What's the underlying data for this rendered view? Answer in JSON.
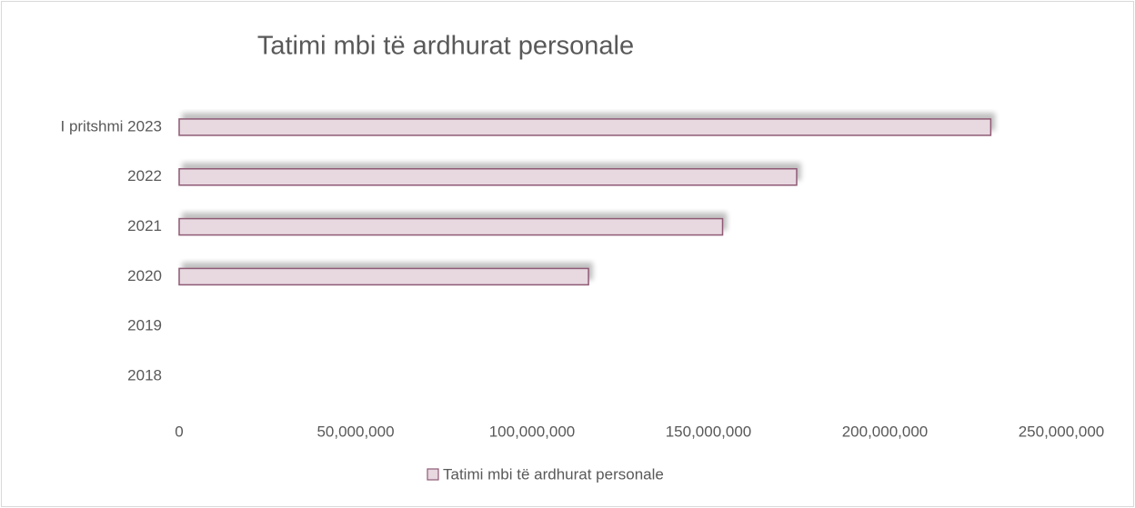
{
  "chart_data": {
    "type": "hbar",
    "title": "Tatimi mbi të ardhurat personale",
    "categories": [
      "2018",
      "2019",
      "2020",
      "2021",
      "2022",
      "I pritshmi 2023"
    ],
    "series": [
      {
        "name": "Tatimi mbi të ardhurat personale",
        "color": "#e8d8e0",
        "edge": "#8e5a75",
        "values": [
          null,
          null,
          116000000,
          154000000,
          175000000,
          230000000
        ]
      }
    ],
    "xlim": [
      0,
      250000000
    ],
    "xticks": [
      0,
      {
        "value": 50000000,
        "label": "50,000,000"
      },
      {
        "value": 100000000,
        "label": "100,000,000"
      },
      {
        "value": 150000000,
        "label": "150,000,000"
      },
      {
        "value": 200000000,
        "label": "200,000,000"
      },
      {
        "value": 250000000,
        "label": "250,000,000"
      }
    ],
    "legend": "bottom"
  }
}
